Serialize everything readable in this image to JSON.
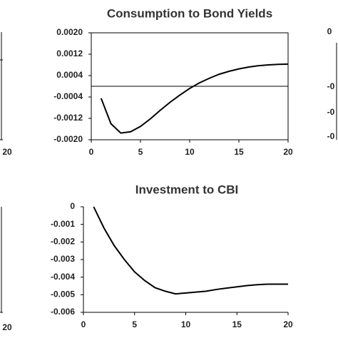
{
  "chart_data": [
    {
      "type": "line",
      "title": "Consumption to Bond Yields",
      "x": [
        1,
        2,
        3,
        4,
        5,
        6,
        7,
        8,
        9,
        10,
        11,
        12,
        13,
        14,
        15,
        16,
        17,
        18,
        19,
        20
      ],
      "series": [
        {
          "color": "#000000",
          "values": [
            -0.00045,
            -0.0014,
            -0.00175,
            -0.0017,
            -0.0015,
            -0.00122,
            -0.0009,
            -0.0006,
            -0.00033,
            -8e-05,
            0.00013,
            0.0003,
            0.00045,
            0.00056,
            0.00065,
            0.00072,
            0.00077,
            0.0008,
            0.00082,
            0.00083
          ]
        }
      ],
      "xlim": [
        0,
        20
      ],
      "xticks": [
        0,
        5,
        10,
        15,
        20
      ],
      "ylim": [
        -0.002,
        0.002
      ],
      "yticks": [
        {
          "value": 0.002,
          "label": "0.0020"
        },
        {
          "value": 0.0012,
          "label": "0.0012"
        },
        {
          "value": 0.0004,
          "label": "0.0004"
        },
        {
          "value": -0.0004,
          "label": "-0.0004"
        },
        {
          "value": -0.0012,
          "label": "-0.0012"
        },
        {
          "value": -0.002,
          "label": "-0.0020"
        }
      ],
      "zero_line": true,
      "box": true
    },
    {
      "type": "line",
      "title": "Investment to CBI",
      "x": [
        1,
        2,
        3,
        4,
        5,
        6,
        7,
        8,
        9,
        10,
        11,
        12,
        13,
        14,
        15,
        16,
        17,
        18,
        19,
        20
      ],
      "series": [
        {
          "color": "#000000",
          "values": [
            0,
            -0.0012,
            -0.0022,
            -0.003,
            -0.0037,
            -0.0042,
            -0.0046,
            -0.0048,
            -0.00495,
            -0.0049,
            -0.00485,
            -0.0048,
            -0.0047,
            -0.00462,
            -0.00455,
            -0.00448,
            -0.00443,
            -0.0044,
            -0.0044,
            -0.0044
          ]
        }
      ],
      "xlim": [
        0,
        20
      ],
      "xticks": [
        0,
        5,
        10,
        15,
        20
      ],
      "ylim": [
        -0.006,
        0
      ],
      "yticks": [
        0,
        -0.001,
        -0.002,
        -0.003,
        -0.004,
        -0.005,
        -0.006
      ],
      "zero_line": false,
      "box": false
    }
  ],
  "edge_fragments": {
    "left": [
      "20",
      "20"
    ],
    "right": [
      "0",
      "-0",
      "-0",
      "-0"
    ]
  }
}
